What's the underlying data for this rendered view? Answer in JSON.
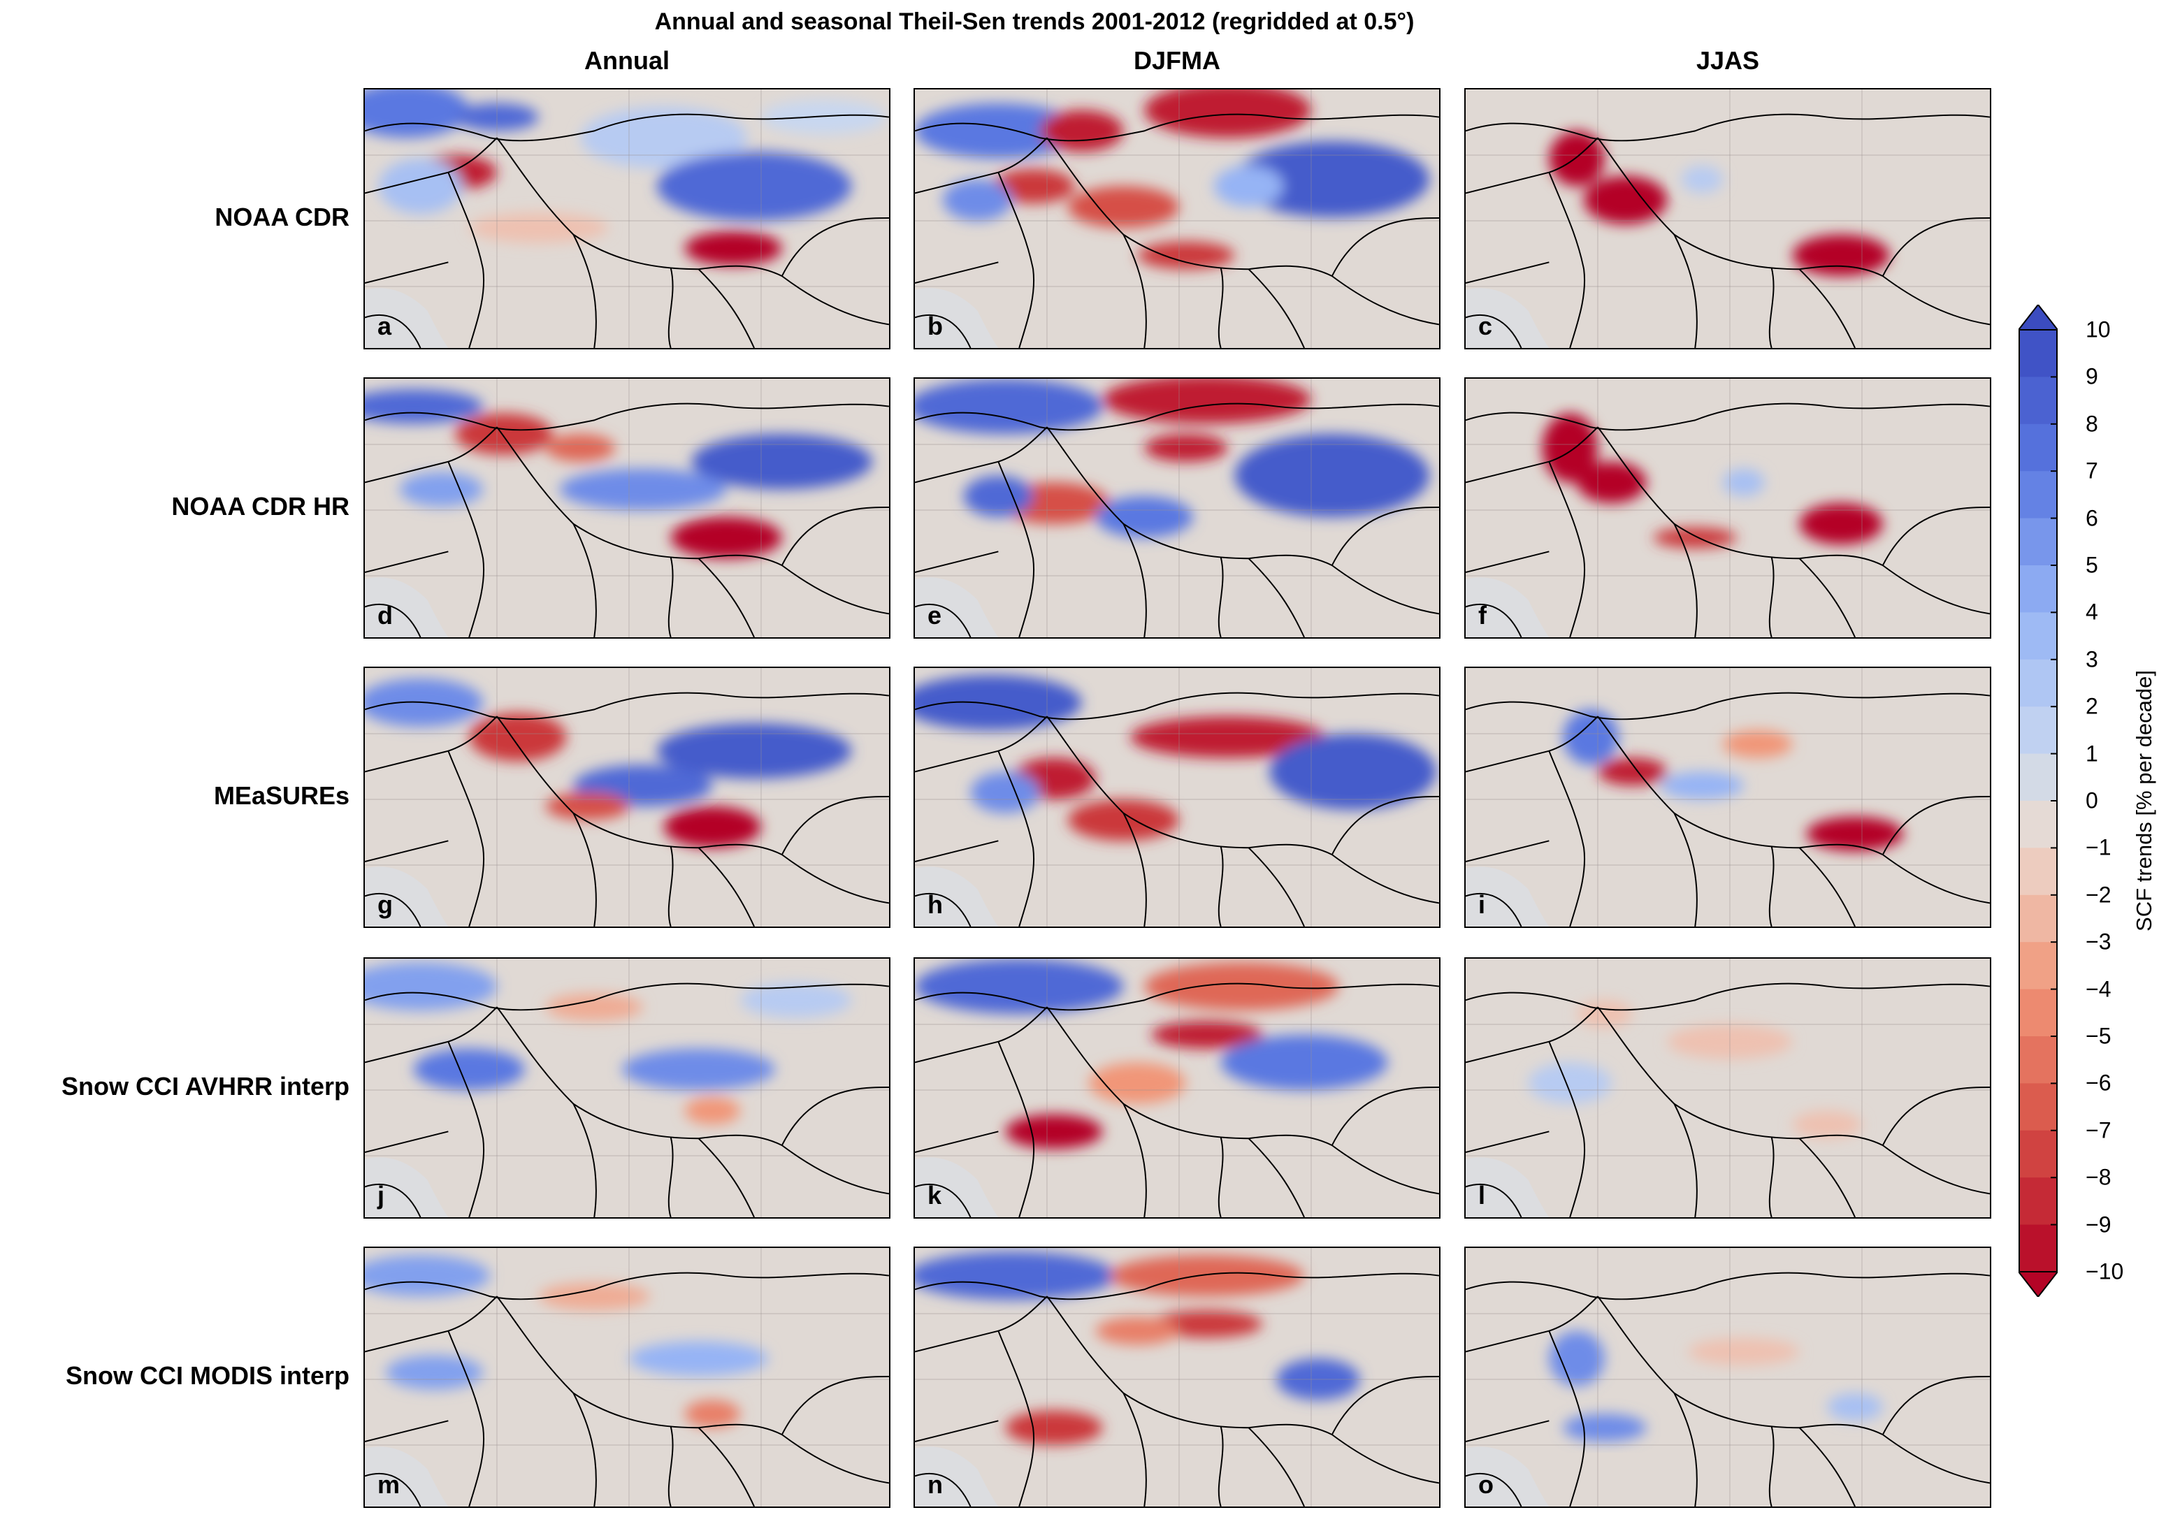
{
  "title": "Annual and seasonal Theil-Sen trends 2001-2012 (regridded at 0.5°)",
  "columns": [
    "Annual",
    "DJFMA",
    "JJAS"
  ],
  "rows": [
    "NOAA CDR",
    "NOAA CDR HR",
    "MEaSUREs",
    "Snow CCI AVHRR interp",
    "Snow CCI MODIS interp"
  ],
  "panel_letters": [
    "a",
    "b",
    "c",
    "d",
    "e",
    "f",
    "g",
    "h",
    "i",
    "j",
    "k",
    "l",
    "m",
    "n",
    "o"
  ],
  "colorbar": {
    "label": "SCF trends [% per decade]",
    "min": -10,
    "max": 10,
    "extend": "both",
    "ticks": [
      "10",
      "9",
      "8",
      "7",
      "6",
      "5",
      "4",
      "3",
      "2",
      "1",
      "0",
      "−1",
      "−2",
      "−3",
      "−4",
      "−5",
      "−6",
      "−7",
      "−8",
      "−9",
      "−10"
    ],
    "colors": {
      "strong_positive": "#3b4cc0",
      "neutral": "#dddcdc",
      "strong_negative": "#b40426",
      "land_background": "#e0d9d4",
      "ocean": "#dcdde0"
    }
  }
}
